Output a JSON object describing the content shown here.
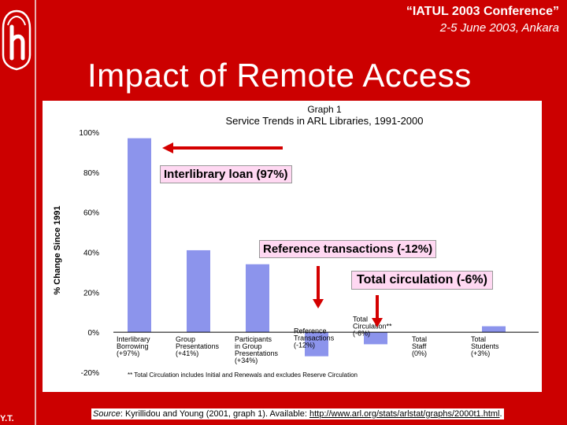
{
  "header": {
    "conference": "“IATUL 2003 Conference”",
    "dates": "2-5 June 2003, Ankara"
  },
  "sidebar": {
    "initials": "Y.T."
  },
  "slide": {
    "title": "Impact of Remote Access"
  },
  "colors": {
    "background": "#cc0000",
    "bar": "#8c94ec",
    "arrow": "#d40000",
    "callout": "#ffd8f2"
  },
  "callouts": {
    "interlibrary": "Interlibrary loan (97%)",
    "reference": "Reference transactions (-12%)",
    "circulation": "Total circulation  (-6%)"
  },
  "footer": {
    "source_label": "Source",
    "source_text": ": Kyrillidou and Young (2001, graph 1). Available: ",
    "source_url": "http://www.arl.org/stats/arlstat/graphs/2000t1.html",
    "source_end": "."
  },
  "chart_data": {
    "type": "bar",
    "title": "Graph 1",
    "subtitle": "Service Trends in ARL Libraries, 1991-2000",
    "ylabel": "% Change Since 1991",
    "ylim": [
      -20,
      100
    ],
    "yticks": [
      -20,
      0,
      20,
      40,
      60,
      80,
      100
    ],
    "ytick_labels": [
      "-20%",
      "0%",
      "20%",
      "40%",
      "60%",
      "80%",
      "100%"
    ],
    "grid": false,
    "categories": [
      [
        "Interlibrary",
        "Borrowing",
        "(+97%)"
      ],
      [
        "Group",
        "Presentations",
        "(+41%)"
      ],
      [
        "Participants",
        "in Group",
        "Presentations",
        "(+34%)"
      ],
      [
        "Reference",
        "Transactions",
        "(-12%)"
      ],
      [
        "Total",
        "Circulation**",
        "(-6%)"
      ],
      [
        "Total",
        "Staff",
        "(0%)"
      ],
      [
        "Total",
        "Students",
        "(+3%)"
      ]
    ],
    "values": [
      97,
      41,
      34,
      -12,
      -6,
      0,
      3
    ],
    "footnote": "** Total Circulation includes Initial and Renewals and excludes Reserve Circulation"
  }
}
